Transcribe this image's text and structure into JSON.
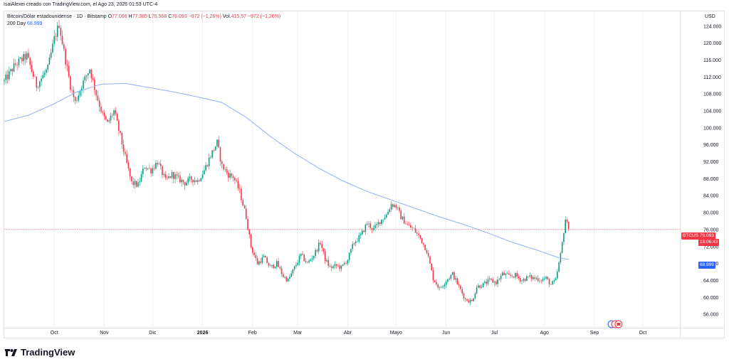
{
  "header": {
    "attribution": "IsaiAlexei creado con TradingView.com, el Ago 23, 2026 01:53 UTC-4"
  },
  "legend": {
    "symbol": "Bitcoin/Dólar estadounidense · 1D · Bitstamp",
    "open_label": "O",
    "open": "77.066",
    "high_label": "H",
    "high": "77.385",
    "low_label": "L",
    "low": "75.568",
    "close_label": "C",
    "close": "76.093",
    "change": "−972 (−1,26%)",
    "volume_label": "Vol.",
    "volume": "415,57",
    "volume_change": "−972 (−1,26%)",
    "ma_label": "200 Day",
    "ma_value": "68.999"
  },
  "axis": {
    "currency": "USD"
  },
  "tags": {
    "symbol": "BTCUSD",
    "price": "76.093",
    "countdown": "18:06:43",
    "ma": "68.999"
  },
  "brand": {
    "name": "TradingView"
  },
  "colors": {
    "up": "#089981",
    "down": "#f23645",
    "ma": "#90aef5",
    "grid": "#eef0f4",
    "price_line": "#f23645"
  },
  "chart_data": {
    "type": "candlestick",
    "interval": "1D",
    "y_ticks": [
      56000,
      60000,
      64000,
      68000,
      72000,
      76000,
      80000,
      84000,
      88000,
      92000,
      96000,
      100000,
      104000,
      108000,
      112000,
      116000,
      120000,
      124000
    ],
    "y_tick_labels": [
      "56.000",
      "60.000",
      "64.000",
      "68.000",
      "72.000",
      "76.000",
      "80.000",
      "84.000",
      "88.000",
      "92.000",
      "96.000",
      "100.000",
      "104.000",
      "108.000",
      "112.000",
      "116.000",
      "120.000",
      "124.000"
    ],
    "ylim": [
      53000,
      127500
    ],
    "x_ticks": [
      {
        "label": "Oct",
        "day": 31,
        "bold": false
      },
      {
        "label": "Nov",
        "day": 62,
        "bold": false
      },
      {
        "label": "Dic",
        "day": 92,
        "bold": false
      },
      {
        "label": "2026",
        "day": 123,
        "bold": true
      },
      {
        "label": "Feb",
        "day": 154,
        "bold": false
      },
      {
        "label": "Mar",
        "day": 182,
        "bold": false
      },
      {
        "label": "Abr",
        "day": 213,
        "bold": false
      },
      {
        "label": "Mayo",
        "day": 243,
        "bold": false
      },
      {
        "label": "Jun",
        "day": 274,
        "bold": false
      },
      {
        "label": "Jul",
        "day": 304,
        "bold": false
      },
      {
        "label": "Ago",
        "day": 335,
        "bold": false
      },
      {
        "label": "Sep",
        "day": 366,
        "bold": false
      },
      {
        "label": "Oct",
        "day": 396,
        "bold": false
      }
    ],
    "x_range_days": [
      0,
      419
    ],
    "close_anchors": [
      [
        0,
        111000
      ],
      [
        7,
        115000
      ],
      [
        14,
        117000
      ],
      [
        20,
        110000
      ],
      [
        27,
        114000
      ],
      [
        31,
        121000
      ],
      [
        34,
        124500
      ],
      [
        37,
        118000
      ],
      [
        41,
        110000
      ],
      [
        44,
        106000
      ],
      [
        48,
        110000
      ],
      [
        53,
        114000
      ],
      [
        57,
        108000
      ],
      [
        61,
        103000
      ],
      [
        64,
        101000
      ],
      [
        68,
        104000
      ],
      [
        72,
        98000
      ],
      [
        75,
        93000
      ],
      [
        79,
        87000
      ],
      [
        83,
        86500
      ],
      [
        87,
        91000
      ],
      [
        91,
        90000
      ],
      [
        95,
        92000
      ],
      [
        100,
        87500
      ],
      [
        104,
        89000
      ],
      [
        108,
        88000
      ],
      [
        112,
        87000
      ],
      [
        116,
        88000
      ],
      [
        120,
        87500
      ],
      [
        124,
        90000
      ],
      [
        128,
        93500
      ],
      [
        132,
        96500
      ],
      [
        135,
        91000
      ],
      [
        139,
        89000
      ],
      [
        142,
        88500
      ],
      [
        146,
        85000
      ],
      [
        150,
        79000
      ],
      [
        153,
        72000
      ],
      [
        157,
        68000
      ],
      [
        161,
        69500
      ],
      [
        165,
        67000
      ],
      [
        169,
        68000
      ],
      [
        173,
        65000
      ],
      [
        176,
        64000
      ],
      [
        180,
        67000
      ],
      [
        184,
        70000
      ],
      [
        188,
        68000
      ],
      [
        192,
        70000
      ],
      [
        196,
        73000
      ],
      [
        199,
        69000
      ],
      [
        202,
        67000
      ],
      [
        206,
        67500
      ],
      [
        209,
        67000
      ],
      [
        213,
        69000
      ],
      [
        217,
        73000
      ],
      [
        221,
        74500
      ],
      [
        225,
        77500
      ],
      [
        229,
        76000
      ],
      [
        233,
        78000
      ],
      [
        237,
        79500
      ],
      [
        240,
        82000
      ],
      [
        243,
        81500
      ],
      [
        246,
        79000
      ],
      [
        250,
        77000
      ],
      [
        254,
        76000
      ],
      [
        258,
        74000
      ],
      [
        262,
        71000
      ],
      [
        266,
        64500
      ],
      [
        270,
        62000
      ],
      [
        274,
        64000
      ],
      [
        278,
        65500
      ],
      [
        282,
        62500
      ],
      [
        286,
        59500
      ],
      [
        290,
        59000
      ],
      [
        293,
        62500
      ],
      [
        297,
        63000
      ],
      [
        301,
        64000
      ],
      [
        305,
        63500
      ],
      [
        309,
        65500
      ],
      [
        313,
        65000
      ],
      [
        317,
        65200
      ],
      [
        321,
        64000
      ],
      [
        325,
        64800
      ],
      [
        329,
        64500
      ],
      [
        333,
        64200
      ],
      [
        336,
        64500
      ],
      [
        339,
        63000
      ],
      [
        342,
        64000
      ],
      [
        345,
        70000
      ],
      [
        348,
        78500
      ],
      [
        350,
        76093
      ]
    ],
    "ma_anchors": [
      [
        0,
        101500
      ],
      [
        15,
        103000
      ],
      [
        30,
        105500
      ],
      [
        45,
        108500
      ],
      [
        60,
        110300
      ],
      [
        75,
        110500
      ],
      [
        90,
        109500
      ],
      [
        105,
        108500
      ],
      [
        120,
        107300
      ],
      [
        135,
        106000
      ],
      [
        150,
        102500
      ],
      [
        165,
        98000
      ],
      [
        180,
        94000
      ],
      [
        195,
        90500
      ],
      [
        210,
        87500
      ],
      [
        225,
        85000
      ],
      [
        240,
        83000
      ],
      [
        255,
        81000
      ],
      [
        270,
        79000
      ],
      [
        285,
        77200
      ],
      [
        300,
        75200
      ],
      [
        315,
        73000
      ],
      [
        330,
        71200
      ],
      [
        345,
        69200
      ],
      [
        350,
        68999
      ]
    ],
    "last_close": 76093,
    "ma_last": 68999,
    "ma_name": "200 Day"
  }
}
